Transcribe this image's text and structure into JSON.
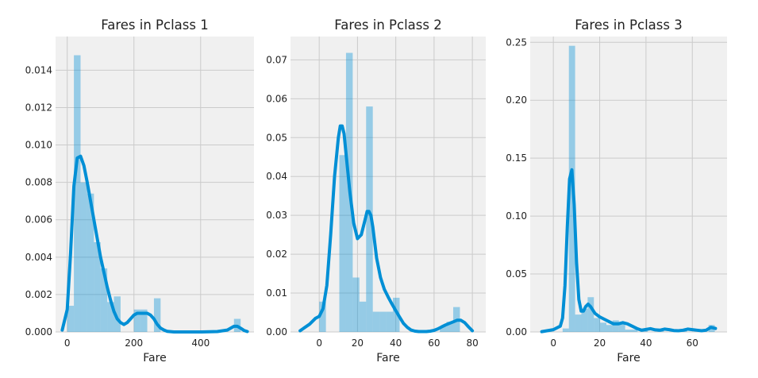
{
  "chart_data": [
    {
      "type": "histogram",
      "title": "Fares in Pclass 1",
      "xlabel": "Fare",
      "ylabel": "",
      "xlim": [
        -35,
        560
      ],
      "ylim": [
        0,
        0.0158
      ],
      "grid": true,
      "xticks": [
        0,
        200,
        400
      ],
      "yticks": [
        0.0,
        0.002,
        0.004,
        0.006,
        0.008,
        0.01,
        0.012,
        0.014
      ],
      "ytick_labels": [
        "0.000",
        "0.002",
        "0.004",
        "0.006",
        "0.008",
        "0.010",
        "0.012",
        "0.014"
      ],
      "bar_color": "#008fd5",
      "line_color": "#008fd5",
      "bins": [
        {
          "x0": 0,
          "x1": 20,
          "value": 0.0014
        },
        {
          "x0": 20,
          "x1": 40,
          "value": 0.0148
        },
        {
          "x0": 40,
          "x1": 60,
          "value": 0.008
        },
        {
          "x0": 60,
          "x1": 80,
          "value": 0.0074
        },
        {
          "x0": 80,
          "x1": 100,
          "value": 0.0048
        },
        {
          "x0": 100,
          "x1": 120,
          "value": 0.0034
        },
        {
          "x0": 120,
          "x1": 140,
          "value": 0.0016
        },
        {
          "x0": 140,
          "x1": 160,
          "value": 0.0019
        },
        {
          "x0": 160,
          "x1": 180,
          "value": 0.0
        },
        {
          "x0": 180,
          "x1": 200,
          "value": 0.0
        },
        {
          "x0": 200,
          "x1": 220,
          "value": 0.0012
        },
        {
          "x0": 220,
          "x1": 240,
          "value": 0.0012
        },
        {
          "x0": 240,
          "x1": 260,
          "value": 0.0
        },
        {
          "x0": 260,
          "x1": 280,
          "value": 0.0018
        },
        {
          "x0": 500,
          "x1": 520,
          "value": 0.0007
        }
      ],
      "kde": {
        "x": [
          -15,
          0,
          10,
          20,
          30,
          40,
          50,
          60,
          70,
          80,
          90,
          100,
          110,
          120,
          130,
          140,
          150,
          160,
          170,
          180,
          190,
          200,
          210,
          220,
          230,
          240,
          250,
          260,
          270,
          280,
          290,
          300,
          320,
          350,
          400,
          450,
          480,
          490,
          500,
          510,
          520,
          530,
          540
        ],
        "y": [
          0.0001,
          0.0012,
          0.0042,
          0.0078,
          0.0093,
          0.0094,
          0.0089,
          0.008,
          0.007,
          0.006,
          0.005,
          0.004,
          0.0032,
          0.0024,
          0.0017,
          0.0011,
          0.0007,
          0.0005,
          0.0004,
          0.0005,
          0.0007,
          0.0009,
          0.001,
          0.001,
          0.001,
          0.001,
          0.0009,
          0.0007,
          0.0004,
          0.0002,
          0.0001,
          3e-05,
          0.0,
          0.0,
          0.0,
          2e-05,
          0.0001,
          0.0002,
          0.0003,
          0.0003,
          0.0002,
          8e-05,
          2e-05
        ]
      }
    },
    {
      "type": "histogram",
      "title": "Fares in Pclass 2",
      "xlabel": "Fare",
      "ylabel": "",
      "xlim": [
        -15,
        87
      ],
      "ylim": [
        0,
        0.076
      ],
      "grid": true,
      "xticks": [
        0,
        20,
        40,
        60,
        80
      ],
      "yticks": [
        0.0,
        0.01,
        0.02,
        0.03,
        0.04,
        0.05,
        0.06,
        0.07
      ],
      "ytick_labels": [
        "0.00",
        "0.01",
        "0.02",
        "0.03",
        "0.04",
        "0.05",
        "0.06",
        "0.07"
      ],
      "bar_color": "#008fd5",
      "line_color": "#008fd5",
      "bins": [
        {
          "x0": 0,
          "x1": 3.5,
          "value": 0.0078
        },
        {
          "x0": 3.5,
          "x1": 7,
          "value": 0.0
        },
        {
          "x0": 7,
          "x1": 10.5,
          "value": 0.0
        },
        {
          "x0": 10.5,
          "x1": 14,
          "value": 0.0455
        },
        {
          "x0": 14,
          "x1": 17.5,
          "value": 0.0718
        },
        {
          "x0": 17.5,
          "x1": 21,
          "value": 0.014
        },
        {
          "x0": 21,
          "x1": 24.5,
          "value": 0.0078
        },
        {
          "x0": 24.5,
          "x1": 28,
          "value": 0.058
        },
        {
          "x0": 28,
          "x1": 31.5,
          "value": 0.0052
        },
        {
          "x0": 31.5,
          "x1": 35,
          "value": 0.0052
        },
        {
          "x0": 35,
          "x1": 38.5,
          "value": 0.0052
        },
        {
          "x0": 38.5,
          "x1": 42,
          "value": 0.0088
        },
        {
          "x0": 63,
          "x1": 66.5,
          "value": 0.0014
        },
        {
          "x0": 66.5,
          "x1": 70,
          "value": 0.0026
        },
        {
          "x0": 70,
          "x1": 73.5,
          "value": 0.0064
        }
      ],
      "kde": {
        "x": [
          -10,
          -5,
          -2,
          0,
          2,
          4,
          6,
          8,
          10,
          11,
          12,
          13,
          14,
          16,
          18,
          20,
          22,
          24,
          25,
          26,
          27,
          28,
          29,
          30,
          32,
          34,
          36,
          38,
          40,
          42,
          44,
          46,
          48,
          50,
          52,
          54,
          56,
          58,
          60,
          62,
          64,
          66,
          68,
          70,
          72,
          74,
          76,
          78,
          80
        ],
        "y": [
          0.0003,
          0.002,
          0.0035,
          0.004,
          0.006,
          0.012,
          0.025,
          0.04,
          0.05,
          0.053,
          0.053,
          0.051,
          0.046,
          0.036,
          0.028,
          0.024,
          0.025,
          0.029,
          0.031,
          0.031,
          0.03,
          0.027,
          0.023,
          0.019,
          0.014,
          0.011,
          0.009,
          0.0072,
          0.0055,
          0.0038,
          0.0022,
          0.0012,
          0.0005,
          0.0002,
          0.0001,
          0.0001,
          0.0001,
          0.0002,
          0.0004,
          0.0008,
          0.0013,
          0.0018,
          0.0022,
          0.0026,
          0.003,
          0.003,
          0.0024,
          0.0013,
          0.0003
        ]
      }
    },
    {
      "type": "histogram",
      "title": "Fares in Pclass 3",
      "xlabel": "Fare",
      "ylabel": "",
      "xlim": [
        -10,
        75
      ],
      "ylim": [
        0,
        0.255
      ],
      "grid": true,
      "xticks": [
        0,
        20,
        40,
        60
      ],
      "yticks": [
        0.0,
        0.05,
        0.1,
        0.15,
        0.2,
        0.25
      ],
      "ytick_labels": [
        "0.00",
        "0.05",
        "0.10",
        "0.15",
        "0.20",
        "0.25"
      ],
      "bar_color": "#008fd5",
      "line_color": "#008fd5",
      "bins": [
        {
          "x0": 4,
          "x1": 6.7,
          "value": 0.003
        },
        {
          "x0": 6.7,
          "x1": 9.4,
          "value": 0.247
        },
        {
          "x0": 9.4,
          "x1": 12.1,
          "value": 0.015
        },
        {
          "x0": 12.1,
          "x1": 14.8,
          "value": 0.02
        },
        {
          "x0": 14.8,
          "x1": 17.5,
          "value": 0.03
        },
        {
          "x0": 17.5,
          "x1": 20.2,
          "value": 0.012
        },
        {
          "x0": 20.2,
          "x1": 22.9,
          "value": 0.008
        },
        {
          "x0": 22.9,
          "x1": 25.6,
          "value": 0.006
        },
        {
          "x0": 25.6,
          "x1": 28.3,
          "value": 0.01
        },
        {
          "x0": 28.3,
          "x1": 31,
          "value": 0.007
        },
        {
          "x0": 31,
          "x1": 33.7,
          "value": 0.002
        },
        {
          "x0": 33.7,
          "x1": 36.4,
          "value": 0.002
        },
        {
          "x0": 38,
          "x1": 40.7,
          "value": 0.002
        },
        {
          "x0": 45,
          "x1": 47.7,
          "value": 0.002
        },
        {
          "x0": 55,
          "x1": 57.7,
          "value": 0.002
        },
        {
          "x0": 67,
          "x1": 69.7,
          "value": 0.006
        }
      ],
      "kde": {
        "x": [
          -5,
          0,
          3,
          4,
          5,
          6,
          7,
          8,
          9,
          10,
          11,
          12,
          13,
          14,
          15,
          16,
          17,
          18,
          20,
          22,
          24,
          26,
          28,
          30,
          32,
          34,
          36,
          38,
          40,
          42,
          44,
          46,
          48,
          50,
          52,
          54,
          56,
          58,
          60,
          62,
          64,
          66,
          68,
          70
        ],
        "y": [
          0.0003,
          0.002,
          0.005,
          0.012,
          0.04,
          0.09,
          0.132,
          0.14,
          0.11,
          0.06,
          0.028,
          0.018,
          0.018,
          0.022,
          0.024,
          0.022,
          0.019,
          0.016,
          0.013,
          0.011,
          0.009,
          0.007,
          0.007,
          0.008,
          0.007,
          0.005,
          0.003,
          0.0015,
          0.0022,
          0.0028,
          0.0018,
          0.0015,
          0.0025,
          0.002,
          0.0012,
          0.001,
          0.0015,
          0.0025,
          0.002,
          0.0015,
          0.001,
          0.0015,
          0.004,
          0.003
        ]
      }
    }
  ]
}
